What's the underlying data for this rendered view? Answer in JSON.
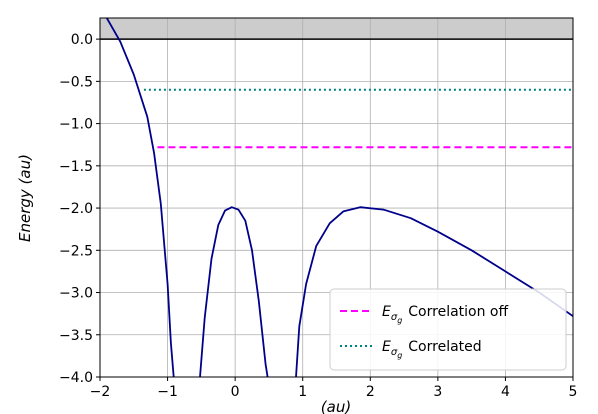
{
  "chart_data": {
    "type": "line",
    "title": "",
    "xlabel": "(au)",
    "ylabel": "Energy (au)",
    "xlim": [
      -2,
      5
    ],
    "ylim": [
      -4.0,
      0.25
    ],
    "grid": true,
    "shaded_region": {
      "y_from": 0.0,
      "y_to": 0.25,
      "color": "#cccccc"
    },
    "xticks": [
      -2,
      -1,
      0,
      1,
      2,
      3,
      4,
      5
    ],
    "xtick_labels": [
      "−2",
      "−1",
      "0",
      "1",
      "2",
      "3",
      "4",
      "5"
    ],
    "yticks": [
      0.0,
      -0.5,
      -1.0,
      -1.5,
      -2.0,
      -2.5,
      -3.0,
      -3.5,
      -4.0
    ],
    "ytick_labels": [
      "0.0",
      "−0.5",
      "−1.0",
      "−1.5",
      "−2.0",
      "−2.5",
      "−3.0",
      "−3.5",
      "−4.0"
    ],
    "series": [
      {
        "color": "#00008b",
        "style": "solid",
        "segments": [
          [
            [
              -1.9,
              0.25
            ],
            [
              -1.7,
              -0.03
            ],
            [
              -1.5,
              -0.42
            ],
            [
              -1.3,
              -0.92
            ],
            [
              -1.2,
              -1.35
            ],
            [
              -1.1,
              -1.95
            ],
            [
              -1.0,
              -2.9
            ],
            [
              -0.95,
              -3.6
            ],
            [
              -0.91,
              -4.0
            ]
          ],
          [
            [
              -0.52,
              -4.0
            ],
            [
              -0.45,
              -3.3
            ],
            [
              -0.35,
              -2.6
            ],
            [
              -0.25,
              -2.2
            ],
            [
              -0.15,
              -2.03
            ],
            [
              -0.05,
              -1.99
            ],
            [
              0.05,
              -2.02
            ],
            [
              0.15,
              -2.15
            ],
            [
              0.25,
              -2.5
            ],
            [
              0.35,
              -3.1
            ],
            [
              0.45,
              -3.85
            ],
            [
              0.48,
              -4.0
            ]
          ],
          [
            [
              0.9,
              -4.0
            ],
            [
              0.95,
              -3.4
            ],
            [
              1.05,
              -2.9
            ],
            [
              1.2,
              -2.45
            ],
            [
              1.4,
              -2.18
            ],
            [
              1.6,
              -2.04
            ],
            [
              1.85,
              -1.99
            ],
            [
              2.2,
              -2.02
            ],
            [
              2.6,
              -2.12
            ],
            [
              3.0,
              -2.28
            ],
            [
              3.5,
              -2.5
            ],
            [
              4.0,
              -2.75
            ],
            [
              4.5,
              -3.0
            ],
            [
              5.0,
              -3.28
            ]
          ]
        ]
      },
      {
        "name": "$E_{\\sigma_g}$ Correlation off",
        "color": "#ff00ff",
        "style": "dashed",
        "x": [
          -1.15,
          5.0
        ],
        "y": [
          -1.28,
          -1.28
        ]
      },
      {
        "name": "$E_{\\sigma_g}$ Correlated",
        "color": "#008080",
        "style": "dotted",
        "x": [
          -1.35,
          5.0
        ],
        "y": [
          -0.6,
          -0.6
        ]
      }
    ],
    "reference_line": {
      "y": 0.0,
      "color": "#000000"
    },
    "legend": {
      "placement": "lower-right",
      "entries": [
        {
          "symbol": "E",
          "subscript": "σ",
          "subsubscript": "g",
          "label": "Correlation off"
        },
        {
          "symbol": "E",
          "subscript": "σ",
          "subsubscript": "g",
          "label": "Correlated"
        }
      ]
    }
  }
}
